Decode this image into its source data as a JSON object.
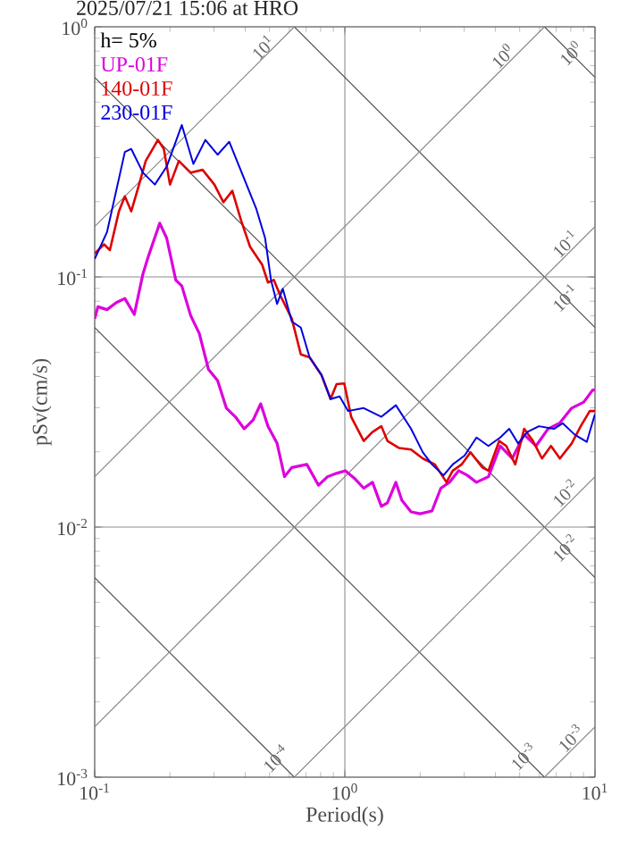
{
  "chart_data": {
    "type": "line",
    "title": "2025/07/21 15:06 at HRO",
    "xlabel": "Period(s)",
    "ylabel": "pSv(cm/s)",
    "legend_title": "h= 5%",
    "legend": "top left",
    "log": "xy",
    "grid": true,
    "xlim": [
      0.1,
      10
    ],
    "ylim": [
      0.001,
      1
    ],
    "xticks": [
      {
        "value": 0.1,
        "label": "10$^{-1}$"
      },
      {
        "value": 1,
        "label": "10$^{0}$"
      },
      {
        "value": 10,
        "label": "10$^{1}$"
      }
    ],
    "yticks": [
      {
        "value": 0.001,
        "label": "10$^{-3}$"
      },
      {
        "value": 0.01,
        "label": "10$^{-2}$"
      },
      {
        "value": 0.1,
        "label": "10$^{-1}$"
      },
      {
        "value": 1,
        "label": "10$^{0}$"
      }
    ],
    "series": [
      {
        "color": "#555555",
        "x": [
          0.1,
          0.628
        ],
        "values": [
          0.00628,
          0.001
        ]
      },
      {
        "color": "#555555",
        "x": [
          0.1,
          6.28
        ],
        "values": [
          0.0628,
          0.001
        ]
      },
      {
        "color": "#555555",
        "x": [
          0.1,
          10
        ],
        "values": [
          0.628,
          0.00628
        ]
      },
      {
        "color": "#555555",
        "x": [
          0.628,
          10
        ],
        "values": [
          1,
          0.0628
        ]
      },
      {
        "color": "#555555",
        "x": [
          6.28,
          10
        ],
        "values": [
          1,
          0.628
        ]
      },
      {
        "color": "#888888",
        "x": [
          0.1,
          0.628
        ],
        "values": [
          0.159,
          1
        ]
      },
      {
        "color": "#888888",
        "x": [
          0.1,
          6.28
        ],
        "values": [
          0.0159,
          1
        ]
      },
      {
        "color": "#888888",
        "x": [
          0.1,
          10
        ],
        "values": [
          0.00159,
          0.159
        ]
      },
      {
        "color": "#888888",
        "x": [
          0.628,
          10
        ],
        "values": [
          0.001,
          0.0159
        ]
      },
      {
        "color": "#888888",
        "x": [
          6.28,
          10
        ],
        "values": [
          0.001,
          0.00159
        ]
      },
      {
        "name": "UP-01F",
        "color": "#dd00dd",
        "x": [
          0.1,
          0.103,
          0.112,
          0.122,
          0.132,
          0.144,
          0.156,
          0.164,
          0.182,
          0.194,
          0.211,
          0.223,
          0.242,
          0.262,
          0.285,
          0.31,
          0.336,
          0.365,
          0.396,
          0.43,
          0.461,
          0.493,
          0.536,
          0.574,
          0.614,
          0.705,
          0.785,
          0.853,
          0.927,
          1.005,
          1.09,
          1.19,
          1.29,
          1.4,
          1.48,
          1.6,
          1.69,
          1.84,
          2.0,
          2.23,
          2.42,
          2.62,
          2.85,
          3.09,
          3.36,
          3.75,
          4.18,
          4.67,
          5.21,
          5.81,
          6.49,
          7.24,
          8.07,
          9.02,
          9.79,
          10
        ],
        "values": [
          0.068,
          0.076,
          0.074,
          0.079,
          0.082,
          0.0708,
          0.103,
          0.121,
          0.164,
          0.143,
          0.097,
          0.092,
          0.07,
          0.0594,
          0.0427,
          0.0385,
          0.0299,
          0.0276,
          0.0247,
          0.0268,
          0.0311,
          0.0253,
          0.0216,
          0.0159,
          0.0173,
          0.0178,
          0.0147,
          0.0159,
          0.0164,
          0.0168,
          0.0157,
          0.0143,
          0.0151,
          0.0121,
          0.0125,
          0.0151,
          0.0128,
          0.0115,
          0.0113,
          0.0116,
          0.0143,
          0.0151,
          0.0168,
          0.0161,
          0.0151,
          0.0159,
          0.0211,
          0.0188,
          0.0234,
          0.0211,
          0.0247,
          0.0261,
          0.0299,
          0.0316,
          0.0353,
          0.0353
        ]
      },
      {
        "name": "140-01F",
        "color": "#dd0000",
        "x": [
          0.1,
          0.109,
          0.115,
          0.125,
          0.132,
          0.14,
          0.148,
          0.16,
          0.179,
          0.189,
          0.2,
          0.217,
          0.242,
          0.27,
          0.301,
          0.327,
          0.355,
          0.385,
          0.418,
          0.467,
          0.493,
          0.52,
          0.55,
          0.614,
          0.667,
          0.723,
          0.807,
          0.877,
          0.927,
          0.995,
          1.06,
          1.19,
          1.29,
          1.4,
          1.48,
          1.65,
          1.84,
          2.05,
          2.29,
          2.55,
          2.7,
          2.93,
          3.18,
          3.55,
          3.75,
          4.14,
          4.42,
          4.8,
          5.21,
          5.65,
          6.14,
          6.67,
          7.24,
          8.07,
          8.77,
          9.53,
          10
        ],
        "values": [
          0.124,
          0.135,
          0.128,
          0.183,
          0.21,
          0.183,
          0.221,
          0.291,
          0.353,
          0.325,
          0.234,
          0.291,
          0.261,
          0.268,
          0.234,
          0.199,
          0.221,
          0.168,
          0.132,
          0.112,
          0.095,
          0.0973,
          0.085,
          0.068,
          0.049,
          0.0477,
          0.0405,
          0.0325,
          0.0373,
          0.0375,
          0.0276,
          0.0221,
          0.024,
          0.0253,
          0.0221,
          0.0207,
          0.0204,
          0.0188,
          0.0178,
          0.0151,
          0.0168,
          0.0178,
          0.0199,
          0.0173,
          0.0168,
          0.0221,
          0.0211,
          0.0178,
          0.0247,
          0.0221,
          0.0188,
          0.0211,
          0.0188,
          0.0216,
          0.0253,
          0.0291,
          0.0291
        ]
      },
      {
        "name": "230-01F",
        "color": "#0000dd",
        "x": [
          0.1,
          0.112,
          0.132,
          0.14,
          0.156,
          0.174,
          0.194,
          0.223,
          0.248,
          0.277,
          0.31,
          0.345,
          0.396,
          0.442,
          0.48,
          0.507,
          0.536,
          0.565,
          0.614,
          0.667,
          0.723,
          0.807,
          0.877,
          0.953,
          1.03,
          1.19,
          1.4,
          1.6,
          1.84,
          2.05,
          2.23,
          2.48,
          2.7,
          3.01,
          3.36,
          3.75,
          4.18,
          4.54,
          4.93,
          5.36,
          5.97,
          6.85,
          7.43,
          8.3,
          9.27,
          10
        ],
        "values": [
          0.118,
          0.151,
          0.316,
          0.325,
          0.261,
          0.234,
          0.276,
          0.405,
          0.283,
          0.353,
          0.308,
          0.347,
          0.247,
          0.188,
          0.143,
          0.097,
          0.078,
          0.0896,
          0.0663,
          0.0627,
          0.0477,
          0.0405,
          0.0325,
          0.0333,
          0.0291,
          0.0299,
          0.0276,
          0.0307,
          0.0247,
          0.0199,
          0.0178,
          0.0161,
          0.0178,
          0.0193,
          0.0228,
          0.0211,
          0.0228,
          0.0247,
          0.0216,
          0.024,
          0.0253,
          0.0247,
          0.026,
          0.0234,
          0.0219,
          0.0283
        ]
      }
    ],
    "annotations": [
      {
        "text": "10$^{1}$",
        "x": 0.5,
        "y": 0.78
      },
      {
        "text": "10$^{0}$",
        "x": 4.54,
        "y": 0.72
      },
      {
        "text": "10$^{0}$",
        "x": 8.5,
        "y": 0.74
      },
      {
        "text": "10$^{-1}$",
        "x": 8.07,
        "y": 0.128
      },
      {
        "text": "10$^{-1}$",
        "x": 8.07,
        "y": 0.0778
      },
      {
        "text": "10$^{-2}$",
        "x": 8.07,
        "y": 0.0129
      },
      {
        "text": "10$^{-2}$",
        "x": 8.07,
        "y": 0.00778
      },
      {
        "text": "10$^{-3}$",
        "x": 5.5,
        "y": 0.00114
      },
      {
        "text": "10$^{-3}$",
        "x": 8.5,
        "y": 0.00135
      },
      {
        "text": "10$^{-4}$",
        "x": 0.562,
        "y": 0.00112
      }
    ]
  }
}
